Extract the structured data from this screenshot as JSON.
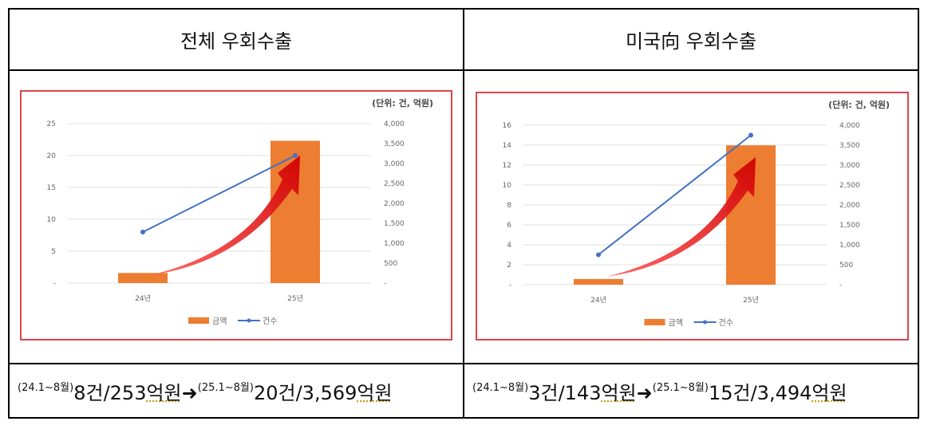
{
  "headers": [
    "전체 우회수출",
    "미국向 우회수출"
  ],
  "footers": [
    {
      "p1": "(24.1~8월)",
      "v1a": "8건/253",
      "u1": "억원",
      "arrow": "➜",
      "p2": "(25.1~8월)",
      "v2a": "20건/3,569",
      "u2": "억원"
    },
    {
      "p1": "(24.1~8월)",
      "v1a": "3건/143",
      "u1": "억원",
      "arrow": "➜",
      "p2": "(25.1~8월)",
      "v2a": "15건/3,494",
      "u2": "억원"
    }
  ],
  "colors": {
    "bar": "#ed7d31",
    "line": "#4472c4",
    "arrow": "#e01010",
    "frame": "#d9474b"
  },
  "chart_data": [
    {
      "type": "bar+line",
      "unit_label": "(단위: 건, 억원)",
      "categories": [
        "24년",
        "25년"
      ],
      "left_axis": {
        "range": [
          0,
          25
        ],
        "ticks": [
          "-",
          "5",
          "10",
          "15",
          "20",
          "25"
        ],
        "tick_values": [
          0,
          5,
          10,
          15,
          20,
          25
        ]
      },
      "right_axis": {
        "range": [
          0,
          4000
        ],
        "ticks": [
          "-",
          "500",
          "1,000",
          "1,500",
          "2,000",
          "2,500",
          "3,000",
          "3,500",
          "4,000"
        ],
        "tick_values": [
          0,
          500,
          1000,
          1500,
          2000,
          2500,
          3000,
          3500,
          4000
        ]
      },
      "series": [
        {
          "name": "금액",
          "kind": "bar",
          "axis": "right",
          "values": [
            253,
            3569
          ]
        },
        {
          "name": "건수",
          "kind": "line",
          "axis": "left",
          "values": [
            8,
            20
          ]
        }
      ],
      "legend": "bottom",
      "grid": true
    },
    {
      "type": "bar+line",
      "unit_label": "(단위: 건, 억원)",
      "categories": [
        "24년",
        "25년"
      ],
      "left_axis": {
        "range": [
          0,
          16
        ],
        "ticks": [
          "-",
          "2",
          "4",
          "6",
          "8",
          "10",
          "12",
          "14",
          "16"
        ],
        "tick_values": [
          0,
          2,
          4,
          6,
          8,
          10,
          12,
          14,
          16
        ]
      },
      "right_axis": {
        "range": [
          0,
          4000
        ],
        "ticks": [
          "-",
          "500",
          "1,000",
          "1,500",
          "2,000",
          "2,500",
          "3,000",
          "3,500",
          "4,000"
        ],
        "tick_values": [
          0,
          500,
          1000,
          1500,
          2000,
          2500,
          3000,
          3500,
          4000
        ]
      },
      "series": [
        {
          "name": "금액",
          "kind": "bar",
          "axis": "right",
          "values": [
            143,
            3494
          ]
        },
        {
          "name": "건수",
          "kind": "line",
          "axis": "left",
          "values": [
            3,
            15
          ]
        }
      ],
      "legend": "bottom",
      "grid": true
    }
  ]
}
